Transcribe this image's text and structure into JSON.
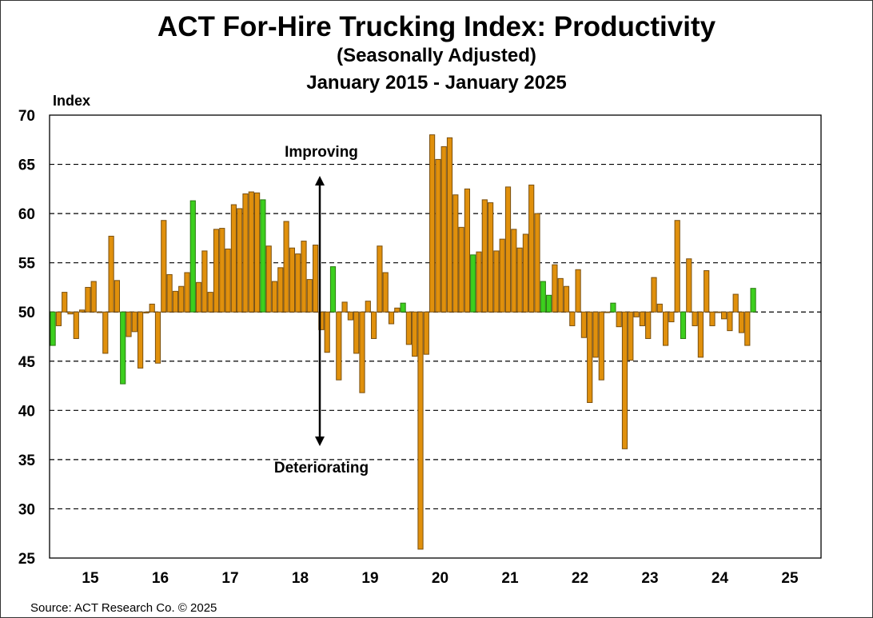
{
  "chart_data": {
    "type": "bar",
    "title": "ACT For-Hire Trucking Index: Productivity",
    "subtitle": "(Seasonally Adjusted)",
    "date_range": "January 2015 - January 2025",
    "ylabel": "Index",
    "xlabel": "",
    "ylim": [
      25,
      70
    ],
    "yticks": [
      "70",
      "65",
      "60",
      "55",
      "50",
      "45",
      "40",
      "35",
      "30",
      "25"
    ],
    "xtick_labels": [
      "15",
      "16",
      "17",
      "18",
      "19",
      "20",
      "21",
      "22",
      "23",
      "24",
      "25"
    ],
    "baseline": 50,
    "grid": true,
    "start_month": "January 2015",
    "end_month": "January 2025",
    "frequency": "monthly",
    "values": [
      46.6,
      48.6,
      52.0,
      49.8,
      47.3,
      50.2,
      52.5,
      53.1,
      50.0,
      45.8,
      57.7,
      53.2,
      42.7,
      47.5,
      48.0,
      44.3,
      49.9,
      50.8,
      44.8,
      59.3,
      53.8,
      52.1,
      52.6,
      54.0,
      61.3,
      53.0,
      56.2,
      52.0,
      58.4,
      58.5,
      56.4,
      60.9,
      60.5,
      62.0,
      62.2,
      62.1,
      61.4,
      56.7,
      53.1,
      54.5,
      59.2,
      56.5,
      55.9,
      57.2,
      53.3,
      56.8,
      48.2,
      45.9,
      54.6,
      43.1,
      51.0,
      49.2,
      45.8,
      41.8,
      51.1,
      47.3,
      56.7,
      54.0,
      48.8,
      50.4,
      50.9,
      46.7,
      45.5,
      25.9,
      45.7,
      68.0,
      65.5,
      66.8,
      67.7,
      61.9,
      58.6,
      62.5,
      55.8,
      56.1,
      61.4,
      61.1,
      56.2,
      57.4,
      62.7,
      58.4,
      56.5,
      57.9,
      62.9,
      60.0,
      53.1,
      51.7,
      54.8,
      53.4,
      52.6,
      48.6,
      54.3,
      47.4,
      40.8,
      45.4,
      43.1,
      50.0,
      50.9,
      48.5,
      36.1,
      45.1,
      49.5,
      48.6,
      47.3,
      53.5,
      50.8,
      46.6,
      49.0,
      59.3,
      47.3,
      55.4,
      48.6,
      45.4,
      54.2,
      48.6,
      50.0,
      49.3,
      48.1,
      51.8,
      47.9,
      46.6,
      52.4
    ],
    "highlighted_indices": [
      0,
      12,
      24,
      36,
      48,
      60,
      72,
      84,
      85,
      96,
      108,
      120
    ],
    "annotations": {
      "improving": "Improving",
      "deteriorating": "Deteriorating"
    },
    "colors": {
      "bar": "#e0900c",
      "bar_border": "#7a5010",
      "highlight": "#3ccf1e",
      "highlight_border": "#2a7a10",
      "grid": "#000000"
    }
  },
  "source": "Source: ACT Research Co. © 2025"
}
